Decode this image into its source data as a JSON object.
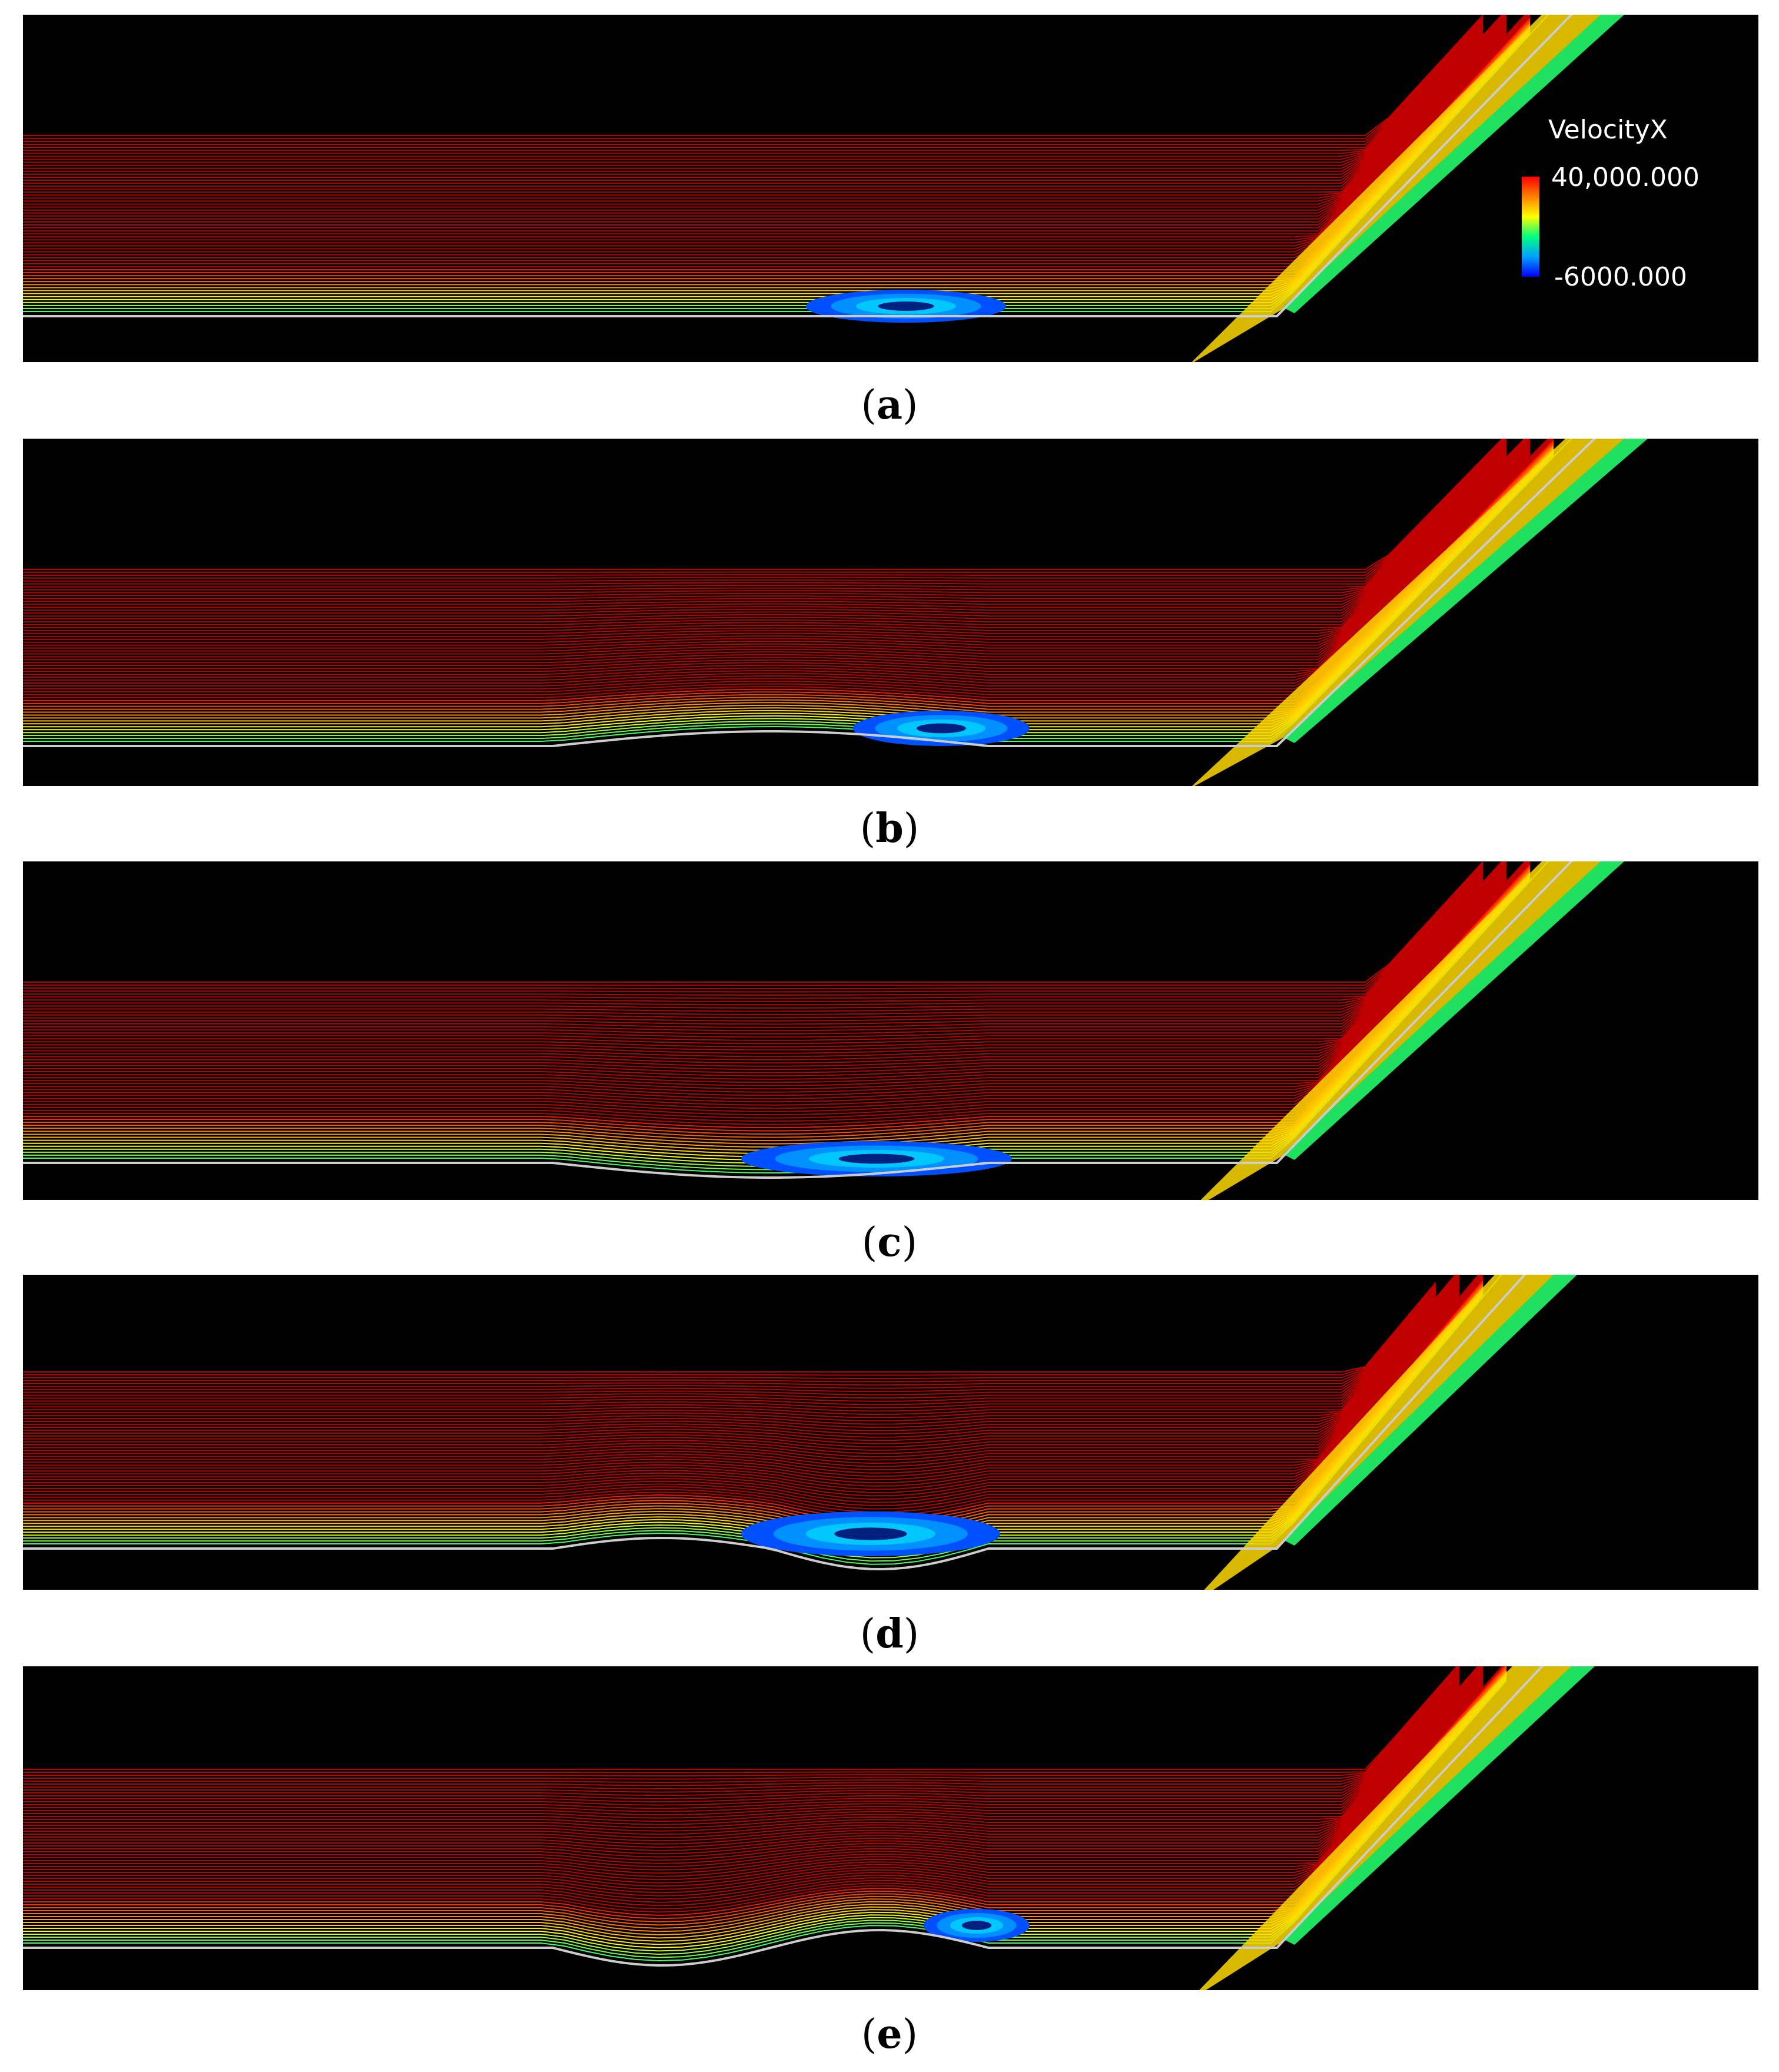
{
  "figure": {
    "panels": [
      {
        "label": "a",
        "wall_shape": "flat"
      },
      {
        "label": "b",
        "wall_shape": "shallow-bump"
      },
      {
        "label": "c",
        "wall_shape": "shallow-dip"
      },
      {
        "label": "d",
        "wall_shape": "bump-then-dip"
      },
      {
        "label": "e",
        "wall_shape": "dip-then-bump"
      }
    ],
    "legend": {
      "title": "VelocityX",
      "max_label": "40,000.000",
      "min_label": "-6000.000",
      "colormap": [
        "#0000ff",
        "#00a0ff",
        "#00ff80",
        "#ffff00",
        "#ff8000",
        "#ff0000"
      ]
    },
    "colors": {
      "background": "#000000",
      "freestream": "#c00000",
      "wall": "#cccccc"
    }
  }
}
